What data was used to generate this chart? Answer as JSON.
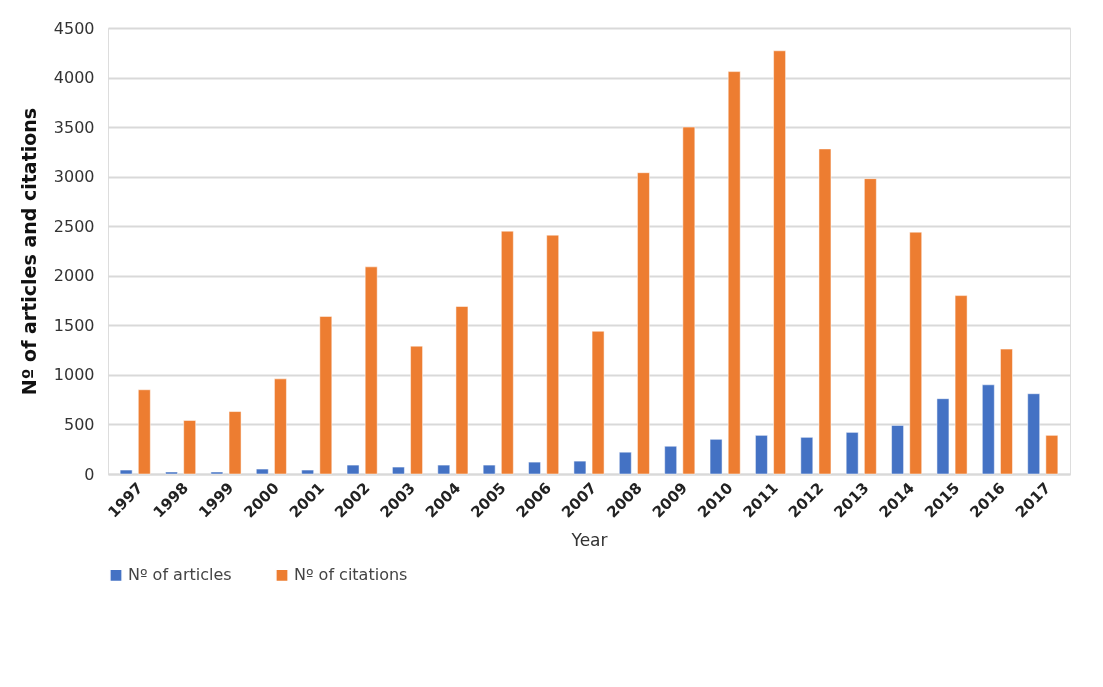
{
  "chart_data": {
    "type": "bar",
    "xlabel": "Year",
    "ylabel": "Nº of articles and citations",
    "categories": [
      "1997",
      "1998",
      "1999",
      "2000",
      "2001",
      "2002",
      "2003",
      "2004",
      "2005",
      "2006",
      "2007",
      "2008",
      "2009",
      "2010",
      "2011",
      "2012",
      "2013",
      "2014",
      "2015",
      "2016",
      "2017"
    ],
    "series": [
      {
        "name": "Nº of articles",
        "color": "#4472c4",
        "values": [
          40,
          20,
          20,
          50,
          40,
          90,
          70,
          90,
          90,
          120,
          130,
          220,
          280,
          350,
          390,
          370,
          420,
          490,
          760,
          900,
          810
        ]
      },
      {
        "name": "Nº of citations",
        "color": "#ed7d31",
        "values": [
          850,
          540,
          630,
          960,
          1590,
          2090,
          1290,
          1690,
          2450,
          2410,
          1440,
          3040,
          3500,
          4060,
          4270,
          3280,
          2980,
          2440,
          1800,
          1260,
          390
        ]
      }
    ],
    "ylim": [
      0,
      4500
    ],
    "yticks": [
      0,
      500,
      1000,
      1500,
      2000,
      2500,
      3000,
      3500,
      4000,
      4500
    ],
    "grid": "y",
    "legend": "bottom"
  }
}
